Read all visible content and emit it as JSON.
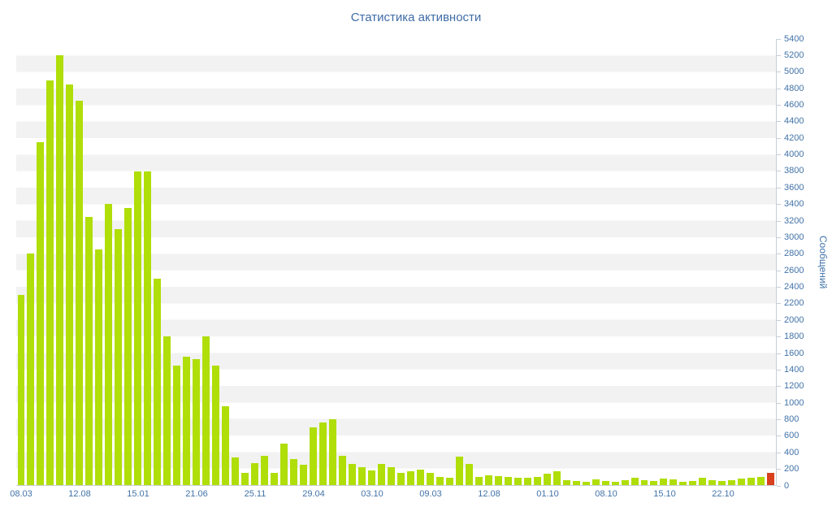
{
  "title": "Статистика активности",
  "chart_data": {
    "type": "bar",
    "title": "Статистика активности",
    "xlabel": "",
    "ylabel": "Сообщений",
    "ylim": [
      0,
      5400
    ],
    "ytick_step": 200,
    "y_axis_side": "right",
    "grid": "horizontal-bands",
    "legend": "none",
    "bar_color": "#b0de09",
    "last_bar_color": "#d9411e",
    "last_bar_highlighted": true,
    "band_light_color": "#ffffff",
    "band_dark_color": "#f2f2f2",
    "label_every_n_bars": 6,
    "x_tick_labels": [
      "08.03",
      "12.08",
      "15.01",
      "21.06",
      "25.11",
      "29.04",
      "03.10",
      "09.03",
      "12.08",
      "01.10",
      "08.10",
      "15.10",
      "22.10"
    ],
    "values": [
      2300,
      2800,
      4150,
      4900,
      5200,
      4850,
      4650,
      3250,
      2850,
      3400,
      3100,
      3350,
      3800,
      3800,
      2500,
      1800,
      1450,
      1550,
      1520,
      1800,
      1450,
      950,
      330,
      150,
      270,
      350,
      150,
      500,
      310,
      250,
      700,
      760,
      800,
      350,
      260,
      220,
      180,
      260,
      215,
      150,
      165,
      185,
      150,
      100,
      90,
      340,
      260,
      100,
      120,
      110,
      100,
      90,
      90,
      100,
      140,
      170,
      60,
      50,
      40,
      70,
      45,
      35,
      55,
      85,
      55,
      50,
      75,
      65,
      40,
      50,
      85,
      55,
      50,
      60,
      80,
      90,
      100,
      150
    ]
  },
  "colors": {
    "text": "#4273a8",
    "title_text": "#3f6ca6",
    "axis_line": "#c6cfd8",
    "background": "#ffffff"
  }
}
